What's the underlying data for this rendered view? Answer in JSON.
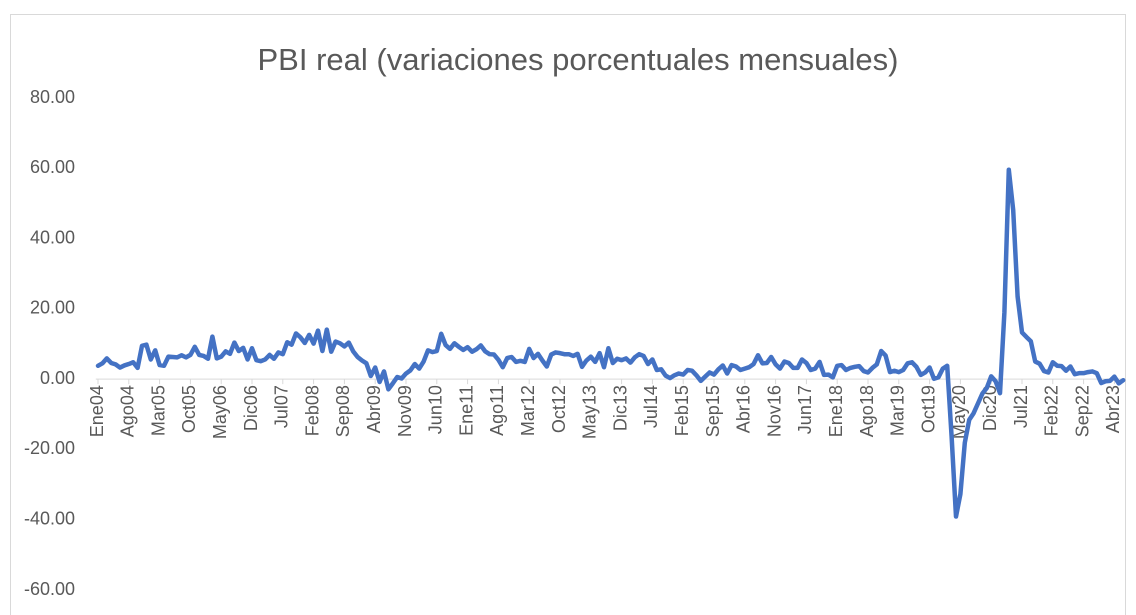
{
  "chart_data": {
    "type": "line",
    "title": "PBI real (variaciones porcentuales mensuales)",
    "categories": [
      "Ene04",
      null,
      null,
      null,
      null,
      null,
      null,
      "Ago04",
      null,
      null,
      null,
      null,
      null,
      null,
      "Mar05",
      null,
      null,
      null,
      null,
      null,
      null,
      "Oct05",
      null,
      null,
      null,
      null,
      null,
      null,
      "May06",
      null,
      null,
      null,
      null,
      null,
      null,
      "Dic06",
      null,
      null,
      null,
      null,
      null,
      null,
      "Jul07",
      null,
      null,
      null,
      null,
      null,
      null,
      "Feb08",
      null,
      null,
      null,
      null,
      null,
      null,
      "Sep08",
      null,
      null,
      null,
      null,
      null,
      null,
      "Abr09",
      null,
      null,
      null,
      null,
      null,
      null,
      "Nov09",
      null,
      null,
      null,
      null,
      null,
      null,
      "Jun10",
      null,
      null,
      null,
      null,
      null,
      null,
      "Ene11",
      null,
      null,
      null,
      null,
      null,
      null,
      "Ago11",
      null,
      null,
      null,
      null,
      null,
      null,
      "Mar12",
      null,
      null,
      null,
      null,
      null,
      null,
      "Oct12",
      null,
      null,
      null,
      null,
      null,
      null,
      "May13",
      null,
      null,
      null,
      null,
      null,
      null,
      "Dic13",
      null,
      null,
      null,
      null,
      null,
      null,
      "Jul14",
      null,
      null,
      null,
      null,
      null,
      null,
      "Feb15",
      null,
      null,
      null,
      null,
      null,
      null,
      "Sep15",
      null,
      null,
      null,
      null,
      null,
      null,
      "Abr16",
      null,
      null,
      null,
      null,
      null,
      null,
      "Nov16",
      null,
      null,
      null,
      null,
      null,
      null,
      "Jun17",
      null,
      null,
      null,
      null,
      null,
      null,
      "Ene18",
      null,
      null,
      null,
      null,
      null,
      null,
      "Ago18",
      null,
      null,
      null,
      null,
      null,
      null,
      "Mar19",
      null,
      null,
      null,
      null,
      null,
      null,
      "Oct19",
      null,
      null,
      null,
      null,
      null,
      null,
      "May20",
      null,
      null,
      null,
      null,
      null,
      null,
      "Dic20",
      null,
      null,
      null,
      null,
      null,
      null,
      "Jul21",
      null,
      null,
      null,
      null,
      null,
      null,
      "Feb22",
      null,
      null,
      null,
      null,
      null,
      null,
      "Sep22",
      null,
      null,
      null,
      null,
      null,
      null,
      "Abr23",
      null,
      null
    ],
    "values": [
      3.8,
      4.5,
      5.9,
      4.6,
      4.2,
      3.3,
      3.9,
      4.3,
      4.8,
      3.2,
      9.5,
      9.8,
      5.6,
      8.2,
      4.0,
      3.8,
      6.4,
      6.3,
      6.2,
      6.8,
      6.2,
      6.9,
      9.2,
      6.9,
      6.6,
      5.8,
      12.1,
      5.9,
      6.4,
      7.9,
      7.2,
      10.4,
      8.0,
      8.9,
      5.6,
      8.8,
      5.4,
      5.1,
      5.6,
      6.9,
      5.8,
      7.6,
      7.1,
      10.5,
      9.8,
      13.0,
      11.9,
      10.3,
      12.6,
      10.1,
      13.8,
      8.0,
      14.1,
      7.8,
      10.7,
      10.2,
      9.3,
      10.4,
      7.9,
      6.3,
      5.3,
      4.5,
      0.9,
      3.3,
      -0.8,
      2.2,
      -2.9,
      -1.2,
      0.6,
      0.2,
      1.6,
      2.5,
      4.3,
      3.0,
      5.0,
      8.2,
      7.7,
      8.0,
      12.9,
      9.7,
      8.6,
      10.2,
      9.2,
      8.3,
      9.1,
      7.8,
      8.5,
      9.6,
      7.9,
      7.1,
      7.0,
      5.5,
      3.4,
      6.0,
      6.3,
      4.9,
      5.2,
      4.9,
      8.6,
      6.0,
      7.2,
      5.3,
      3.6,
      7.0,
      7.6,
      7.4,
      7.1,
      7.1,
      6.6,
      7.2,
      3.5,
      5.3,
      6.4,
      4.9,
      7.4,
      3.4,
      8.8,
      4.6,
      5.8,
      5.4,
      5.9,
      4.7,
      6.2,
      7.1,
      6.6,
      4.3,
      5.6,
      2.6,
      2.8,
      1.0,
      0.3,
      1.1,
      1.6,
      1.3,
      2.6,
      2.4,
      1.1,
      -0.5,
      0.7,
      1.9,
      1.3,
      2.8,
      3.9,
      1.6,
      4.0,
      3.6,
      2.6,
      3.0,
      3.4,
      4.3,
      6.8,
      4.5,
      4.6,
      6.3,
      4.2,
      3.0,
      5.0,
      4.6,
      3.2,
      3.2,
      5.6,
      4.6,
      2.6,
      3.0,
      4.9,
      1.2,
      1.3,
      0.5,
      3.8,
      4.0,
      2.6,
      3.2,
      3.5,
      3.7,
      2.3,
      1.9,
      3.2,
      4.2,
      8.0,
      6.7,
      2.0,
      2.4,
      2.0,
      2.6,
      4.5,
      4.8,
      3.5,
      1.2,
      1.9,
      3.3,
      0.1,
      0.5,
      3.0,
      3.8,
      -16.3,
      -39.1,
      -32.7,
      -18.1,
      -11.6,
      -9.7,
      -6.9,
      -4.1,
      -2.5,
      0.8,
      -0.6,
      -4.0,
      19.0,
      59.6,
      48.1,
      23.5,
      13.3,
      12.0,
      10.8,
      5.0,
      4.4,
      2.3,
      1.9,
      4.8,
      3.8,
      3.7,
      2.4,
      3.6,
      1.4,
      1.7,
      1.7,
      2.0,
      2.2,
      1.7,
      -1.1,
      -0.6,
      -0.5,
      0.7,
      -1.2,
      -0.3
    ],
    "color": "#4472c4",
    "ylim": [
      -60,
      80
    ],
    "yticks": [
      {
        "value": -60,
        "label": "-60.00"
      },
      {
        "value": -40,
        "label": "-40.00"
      },
      {
        "value": -20,
        "label": "-20.00"
      },
      {
        "value": 0,
        "label": "0.00"
      },
      {
        "value": 20,
        "label": "20.00"
      },
      {
        "value": 40,
        "label": "40.00"
      },
      {
        "value": 60,
        "label": "60.00"
      },
      {
        "value": 80,
        "label": "80.00"
      }
    ],
    "grid": false
  }
}
